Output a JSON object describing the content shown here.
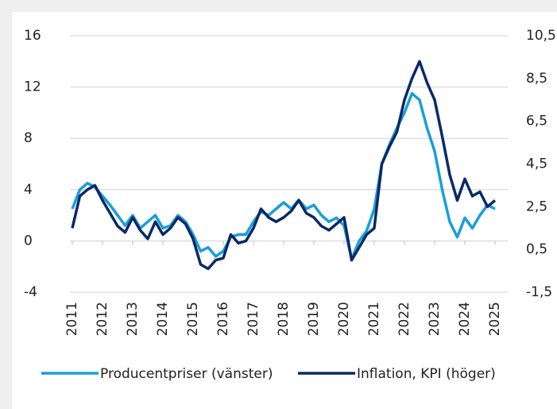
{
  "chart_data": {
    "type": "line",
    "x": [
      2011.0,
      2011.25,
      2011.5,
      2011.75,
      2012.0,
      2012.25,
      2012.5,
      2012.75,
      2013.0,
      2013.25,
      2013.5,
      2013.75,
      2014.0,
      2014.25,
      2014.5,
      2014.75,
      2015.0,
      2015.25,
      2015.5,
      2015.75,
      2016.0,
      2016.25,
      2016.5,
      2016.75,
      2017.0,
      2017.25,
      2017.5,
      2017.75,
      2018.0,
      2018.25,
      2018.5,
      2018.75,
      2019.0,
      2019.25,
      2019.5,
      2019.75,
      2020.0,
      2020.25,
      2020.5,
      2020.75,
      2021.0,
      2021.25,
      2021.5,
      2021.75,
      2022.0,
      2022.25,
      2022.5,
      2022.75,
      2023.0,
      2023.25,
      2023.5,
      2023.75,
      2024.0,
      2024.25,
      2024.5,
      2024.75,
      2025.0
    ],
    "series": [
      {
        "name": "Producentpriser (vänster)",
        "color": "#1a9ed9",
        "values": [
          2.5,
          4,
          4.5,
          4.2,
          3.5,
          2.8,
          2.0,
          1.2,
          2.0,
          1.0,
          1.5,
          2.0,
          1.0,
          1.2,
          2.0,
          1.5,
          0.5,
          -0.8,
          -0.5,
          -1.2,
          -0.8,
          0.3,
          0.5,
          0.5,
          1.5,
          2.3,
          2.0,
          2.5,
          3.0,
          2.5,
          3.2,
          2.5,
          2.8,
          2.0,
          1.5,
          1.8,
          1.2,
          -1.4,
          0,
          0.8,
          2.5,
          6,
          7.5,
          8.8,
          10,
          11.5,
          11,
          8.8,
          7.0,
          4.0,
          1.5,
          0.3,
          1.8,
          1.0,
          2.0,
          2.8,
          2.5
        ]
      },
      {
        "name": "Inflation, KPI (höger)",
        "color": "#0a2a66",
        "axis": "y2",
        "values": [
          1.5,
          3.0,
          3.3,
          3.5,
          2.8,
          2.2,
          1.6,
          1.3,
          2.0,
          1.4,
          1.0,
          1.8,
          1.2,
          1.5,
          2.0,
          1.7,
          1.0,
          -0.2,
          -0.4,
          0,
          0.1,
          1.2,
          0.8,
          0.9,
          1.5,
          2.4,
          2.0,
          1.8,
          2.0,
          2.3,
          2.8,
          2.2,
          2.0,
          1.6,
          1.4,
          1.7,
          2.0,
          0,
          0.6,
          1.2,
          1.5,
          4.5,
          5.3,
          6.0,
          7.5,
          8.5,
          9.3,
          8.3,
          7.5,
          5.8,
          4.0,
          2.8,
          3.8,
          3.0,
          3.2,
          2.5,
          2.8
        ]
      }
    ],
    "xlim": [
      2011,
      2025
    ],
    "xticks": [
      2011,
      2012,
      2013,
      2014,
      2015,
      2016,
      2017,
      2018,
      2019,
      2020,
      2021,
      2022,
      2023,
      2024,
      2025
    ],
    "ylim": [
      -4,
      16
    ],
    "yticks": [
      -4,
      0,
      4,
      8,
      12,
      16
    ],
    "y2lim": [
      -1.5,
      10.5
    ],
    "y2ticks": [
      {
        "value": -1.5,
        "label": "-1,5"
      },
      {
        "value": 0.5,
        "label": "0,5"
      },
      {
        "value": 2.5,
        "label": "2,5"
      },
      {
        "value": 4.5,
        "label": "4,5"
      },
      {
        "value": 6.5,
        "label": "6,5"
      },
      {
        "value": 8.5,
        "label": "8,5"
      },
      {
        "value": 10.5,
        "label": "10,5"
      }
    ],
    "grid": true
  }
}
